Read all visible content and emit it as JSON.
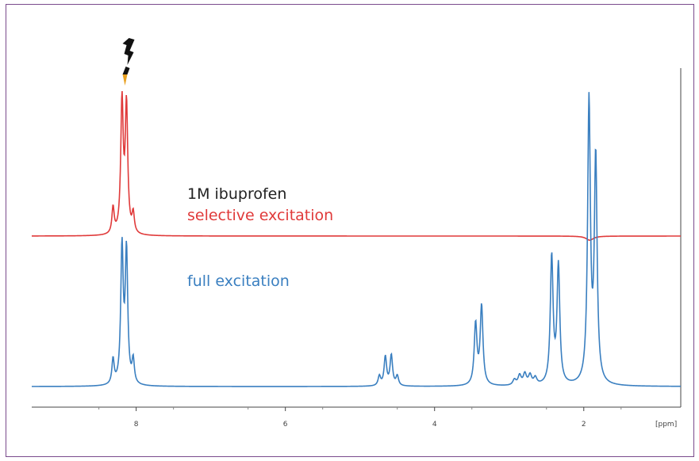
{
  "chart_data": {
    "type": "line",
    "title": "",
    "xlabel": "[ppm]",
    "ylabel": "",
    "xlim": [
      9.4,
      0.7
    ],
    "x_reversed": true,
    "xticks": [
      8,
      6,
      4,
      2
    ],
    "grid": false,
    "annotations": {
      "sample": "1M ibuprofen",
      "selective": "selective excitation",
      "full": "full excitation",
      "excitation_marker_ppm": 8.15
    },
    "series": [
      {
        "name": "selective excitation",
        "color": "#e03a3a",
        "baseline": 0,
        "peaks": [
          {
            "ppm": 8.31,
            "height": 0.19,
            "width": 0.018
          },
          {
            "ppm": 8.19,
            "height": 0.95,
            "width": 0.02
          },
          {
            "ppm": 8.13,
            "height": 0.92,
            "width": 0.02
          },
          {
            "ppm": 8.04,
            "height": 0.14,
            "width": 0.018
          },
          {
            "ppm": 1.92,
            "height": -0.03,
            "width": 0.06
          }
        ]
      },
      {
        "name": "full excitation",
        "color": "#3a7fc0",
        "baseline": 0,
        "peaks": [
          {
            "ppm": 8.31,
            "height": 0.18,
            "width": 0.018
          },
          {
            "ppm": 8.19,
            "height": 0.98,
            "width": 0.02
          },
          {
            "ppm": 8.13,
            "height": 0.95,
            "width": 0.02
          },
          {
            "ppm": 8.04,
            "height": 0.17,
            "width": 0.018
          },
          {
            "ppm": 4.74,
            "height": 0.07,
            "width": 0.02
          },
          {
            "ppm": 4.66,
            "height": 0.21,
            "width": 0.02
          },
          {
            "ppm": 4.58,
            "height": 0.22,
            "width": 0.02
          },
          {
            "ppm": 4.5,
            "height": 0.07,
            "width": 0.02
          },
          {
            "ppm": 3.45,
            "height": 0.44,
            "width": 0.022
          },
          {
            "ppm": 3.37,
            "height": 0.57,
            "width": 0.022
          },
          {
            "ppm": 2.93,
            "height": 0.04,
            "width": 0.025
          },
          {
            "ppm": 2.86,
            "height": 0.07,
            "width": 0.025
          },
          {
            "ppm": 2.79,
            "height": 0.08,
            "width": 0.025
          },
          {
            "ppm": 2.72,
            "height": 0.07,
            "width": 0.025
          },
          {
            "ppm": 2.65,
            "height": 0.05,
            "width": 0.025
          },
          {
            "ppm": 2.43,
            "height": 0.92,
            "width": 0.022
          },
          {
            "ppm": 2.34,
            "height": 0.85,
            "width": 0.022
          },
          {
            "ppm": 1.93,
            "height": 2.03,
            "width": 0.022
          },
          {
            "ppm": 1.84,
            "height": 1.62,
            "width": 0.022
          }
        ]
      }
    ]
  }
}
